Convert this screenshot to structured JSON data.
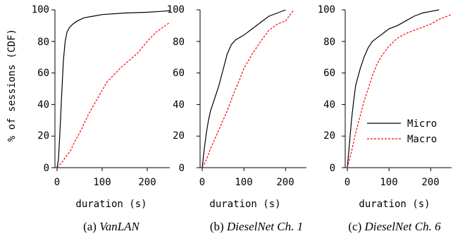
{
  "figure": {
    "ylabel": "% of sessions (CDF)",
    "xlabel": "duration (s)",
    "legend": {
      "placement": "lower-right",
      "micro": "Micro",
      "macro": "Macro"
    },
    "colors": {
      "micro": "#000000",
      "macro": "#ff0000"
    }
  },
  "chart_data": [
    {
      "type": "line",
      "caption_prefix": "(a)",
      "caption_name": "VanLAN",
      "xlabel": "duration (s)",
      "ylabel": "% of sessions (CDF)",
      "xlim": [
        0,
        250
      ],
      "ylim": [
        0,
        100
      ],
      "xticks": [
        "0",
        "100",
        "200"
      ],
      "yticks": [
        "0",
        "20",
        "40",
        "60",
        "80",
        "100"
      ],
      "series": [
        {
          "name": "Micro",
          "style": "solid",
          "color": "#000000",
          "x": [
            0,
            3,
            6,
            10,
            14,
            18,
            22,
            28,
            35,
            45,
            60,
            80,
            100,
            150,
            200,
            230,
            250
          ],
          "y": [
            0,
            5,
            20,
            45,
            68,
            80,
            86,
            89,
            91,
            93,
            95,
            96,
            97,
            98,
            98.5,
            99,
            99.5
          ]
        },
        {
          "name": "Macro",
          "style": "dashed",
          "color": "#ff0000",
          "x": [
            0,
            10,
            20,
            30,
            40,
            50,
            60,
            70,
            80,
            90,
            100,
            110,
            120,
            140,
            160,
            180,
            200,
            220,
            250
          ],
          "y": [
            0,
            3,
            7,
            11,
            17,
            22,
            28,
            34,
            39,
            44,
            49,
            54,
            57,
            63,
            68,
            73,
            80,
            86,
            92
          ]
        }
      ]
    },
    {
      "type": "line",
      "caption_prefix": "(b)",
      "caption_name": "DieselNet Ch. 1",
      "xlabel": "duration (s)",
      "ylabel": "",
      "xlim": [
        0,
        250
      ],
      "ylim": [
        0,
        100
      ],
      "xticks": [
        "0",
        "100",
        "200"
      ],
      "yticks": [
        "0",
        "20",
        "40",
        "60",
        "80",
        "100"
      ],
      "series": [
        {
          "name": "Micro",
          "style": "solid",
          "color": "#000000",
          "x": [
            0,
            5,
            10,
            15,
            20,
            30,
            40,
            50,
            60,
            70,
            80,
            100,
            120,
            140,
            160,
            180,
            200
          ],
          "y": [
            0,
            12,
            22,
            30,
            36,
            44,
            52,
            62,
            72,
            78,
            81,
            84,
            88,
            92,
            96,
            98,
            100
          ]
        },
        {
          "name": "Macro",
          "style": "dashed",
          "color": "#ff0000",
          "x": [
            0,
            10,
            20,
            30,
            40,
            50,
            60,
            70,
            80,
            90,
            100,
            120,
            140,
            160,
            180,
            200,
            220
          ],
          "y": [
            0,
            5,
            12,
            18,
            24,
            30,
            36,
            43,
            50,
            56,
            63,
            72,
            80,
            87,
            91,
            93,
            100
          ]
        }
      ]
    },
    {
      "type": "line",
      "caption_prefix": "(c)",
      "caption_name": "DieselNet Ch. 6",
      "xlabel": "duration (s)",
      "ylabel": "",
      "xlim": [
        0,
        250
      ],
      "ylim": [
        0,
        100
      ],
      "xticks": [
        "0",
        "100",
        "200"
      ],
      "yticks": [
        "0",
        "20",
        "40",
        "60",
        "80",
        "100"
      ],
      "series": [
        {
          "name": "Micro",
          "style": "solid",
          "color": "#000000",
          "x": [
            0,
            5,
            10,
            15,
            20,
            30,
            40,
            50,
            60,
            70,
            80,
            90,
            100,
            120,
            140,
            160,
            180,
            200,
            220
          ],
          "y": [
            0,
            15,
            30,
            42,
            52,
            62,
            70,
            76,
            80,
            82,
            84,
            86,
            88,
            90,
            93,
            96,
            98,
            99,
            100
          ]
        },
        {
          "name": "Macro",
          "style": "dashed",
          "color": "#ff0000",
          "x": [
            0,
            10,
            20,
            30,
            40,
            50,
            60,
            70,
            80,
            100,
            120,
            140,
            160,
            180,
            200,
            220,
            250
          ],
          "y": [
            0,
            10,
            22,
            32,
            42,
            50,
            58,
            65,
            70,
            77,
            82,
            85,
            87,
            89,
            91,
            94,
            97
          ]
        }
      ]
    }
  ]
}
